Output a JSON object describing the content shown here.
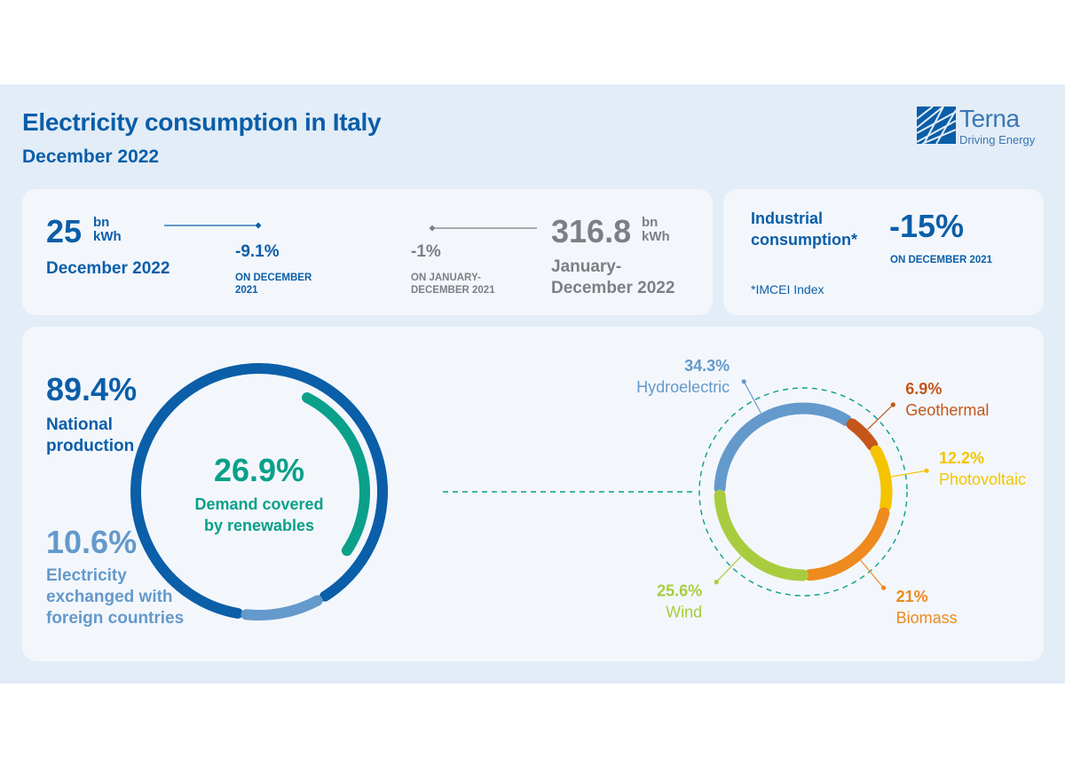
{
  "header": {
    "title": "Electricity consumption in Italy",
    "subtitle": "December 2022",
    "logo_word": "Terna",
    "logo_tagline": "Driving Energy"
  },
  "colors": {
    "primary": "#0b5ea8",
    "light_blue": "#6499cb",
    "renewables": "#0aa08a",
    "grey_text": "#7c7f84",
    "background": "#e3edf7",
    "card": "#f3f7fc"
  },
  "kpis": {
    "monthly": {
      "value": "25",
      "unit_top": "bn",
      "unit_bottom": "kWh",
      "period": "December 2022",
      "change": "-9.1%",
      "change_note_1": "ON DECEMBER",
      "change_note_2": "2021"
    },
    "yearly": {
      "value": "316.8",
      "unit_top": "bn",
      "unit_bottom": "kWh",
      "period_1": "January-",
      "period_2": "December 2022",
      "change": "-1%",
      "change_note_1": "ON JANUARY-",
      "change_note_2": "DECEMBER 2021"
    },
    "industrial": {
      "label_1": "Industrial",
      "label_2": "consumption*",
      "change": "-15%",
      "change_note": "ON DECEMBER 2021",
      "footnote": "*IMCEI Index"
    }
  },
  "chart_data": [
    {
      "type": "pie",
      "title": "",
      "categories": [
        "National production",
        "Electricity exchanged with foreign countries"
      ],
      "values": [
        89.4,
        10.6
      ],
      "labels": [
        "89.4%",
        "10.6%"
      ],
      "label_lines": [
        [
          "National",
          "production"
        ],
        [
          "Electricity",
          "exchanged with",
          "foreign countries"
        ]
      ],
      "colors": [
        "#0b5ea8",
        "#6499cb"
      ],
      "inner_arc": {
        "label": "26.9%",
        "caption": [
          "Demand covered",
          "by renewables"
        ],
        "value": 26.9,
        "color": "#0aa08a"
      }
    },
    {
      "type": "pie",
      "title": "",
      "categories": [
        "Hydroelectric",
        "Geothermal",
        "Photovoltaic",
        "Biomass",
        "Wind"
      ],
      "values": [
        34.3,
        6.9,
        12.2,
        21,
        25.6
      ],
      "labels": [
        "34.3%",
        "6.9%",
        "12.2%",
        "21%",
        "25.6%"
      ],
      "colors": [
        "#6499cb",
        "#c4561a",
        "#f5c400",
        "#ee8a1e",
        "#a9cc3f"
      ]
    }
  ]
}
